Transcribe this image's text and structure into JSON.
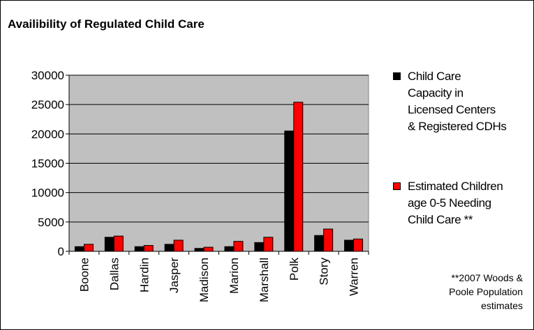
{
  "chart_data": {
    "type": "bar",
    "title": "Availibility of Regulated Child Care",
    "xlabel": "",
    "ylabel": "",
    "categories": [
      "Boone",
      "Dallas",
      "Hardin",
      "Jasper",
      "Madison",
      "Marion",
      "Marshall",
      "Polk",
      "Story",
      "Warren"
    ],
    "ylim": [
      0,
      30000
    ],
    "yticks": [
      0,
      5000,
      10000,
      15000,
      20000,
      25000,
      30000
    ],
    "grid": true,
    "legend_position": "right",
    "plot_background": "#c0c0c0",
    "series": [
      {
        "name": "Child Care Capacity in Licensed Centers & Registered CDHs",
        "color": "#000000",
        "values": [
          800,
          2400,
          800,
          1200,
          500,
          800,
          1500,
          20500,
          2700,
          1900
        ]
      },
      {
        "name": "Estimated Children age 0-5 Needing Child Care **",
        "color": "#ff0000",
        "values": [
          1200,
          2600,
          1000,
          1900,
          700,
          1700,
          2400,
          25400,
          3800,
          2100
        ]
      }
    ],
    "legend_lines": [
      "Child Care\nCapacity in\nLicensed Centers\n& Registered CDHs",
      "Estimated Children\nage 0-5 Needing\nChild Care **"
    ],
    "footnote": "**2007 Woods &\nPoole Population\nestimates"
  }
}
